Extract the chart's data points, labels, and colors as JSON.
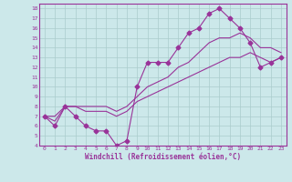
{
  "xlabel": "Windchill (Refroidissement éolien,°C)",
  "background_color": "#cce8ea",
  "grid_color": "#aacccc",
  "line_color": "#993399",
  "xlim": [
    -0.5,
    23.5
  ],
  "ylim": [
    4,
    18.5
  ],
  "xticks": [
    0,
    1,
    2,
    3,
    4,
    5,
    6,
    7,
    8,
    9,
    10,
    11,
    12,
    13,
    14,
    15,
    16,
    17,
    18,
    19,
    20,
    21,
    22,
    23
  ],
  "yticks": [
    4,
    5,
    6,
    7,
    8,
    9,
    10,
    11,
    12,
    13,
    14,
    15,
    16,
    17,
    18
  ],
  "series_main": {
    "x": [
      0,
      1,
      2,
      3,
      4,
      5,
      6,
      7,
      8,
      9,
      10,
      11,
      12,
      13,
      14,
      15,
      16,
      17,
      18,
      19,
      20,
      21,
      22,
      23
    ],
    "y": [
      7,
      6,
      8,
      7,
      6,
      5.5,
      5.5,
      4,
      4.5,
      10,
      12.5,
      12.5,
      12.5,
      14,
      15.5,
      16,
      17.5,
      18,
      17,
      16,
      14.5,
      12,
      12.5,
      13
    ]
  },
  "series_lower": {
    "x": [
      0,
      1,
      2,
      3,
      4,
      5,
      6,
      7,
      8,
      9,
      10,
      11,
      12,
      13,
      14,
      15,
      16,
      17,
      18,
      19,
      20,
      21,
      22,
      23
    ],
    "y": [
      7,
      6.5,
      8,
      8,
      7.5,
      7.5,
      7.5,
      7,
      7.5,
      8.5,
      9,
      9.5,
      10,
      10.5,
      11,
      11.5,
      12,
      12.5,
      13,
      13,
      13.5,
      13,
      12.5,
      13
    ]
  },
  "series_upper": {
    "x": [
      0,
      1,
      2,
      3,
      4,
      5,
      6,
      7,
      8,
      9,
      10,
      11,
      12,
      13,
      14,
      15,
      16,
      17,
      18,
      19,
      20,
      21,
      22,
      23
    ],
    "y": [
      7,
      7,
      8,
      8,
      8,
      8,
      8,
      7.5,
      8,
      9,
      10,
      10.5,
      11,
      12,
      12.5,
      13.5,
      14.5,
      15,
      15,
      15.5,
      15,
      14,
      14,
      13.5
    ]
  }
}
